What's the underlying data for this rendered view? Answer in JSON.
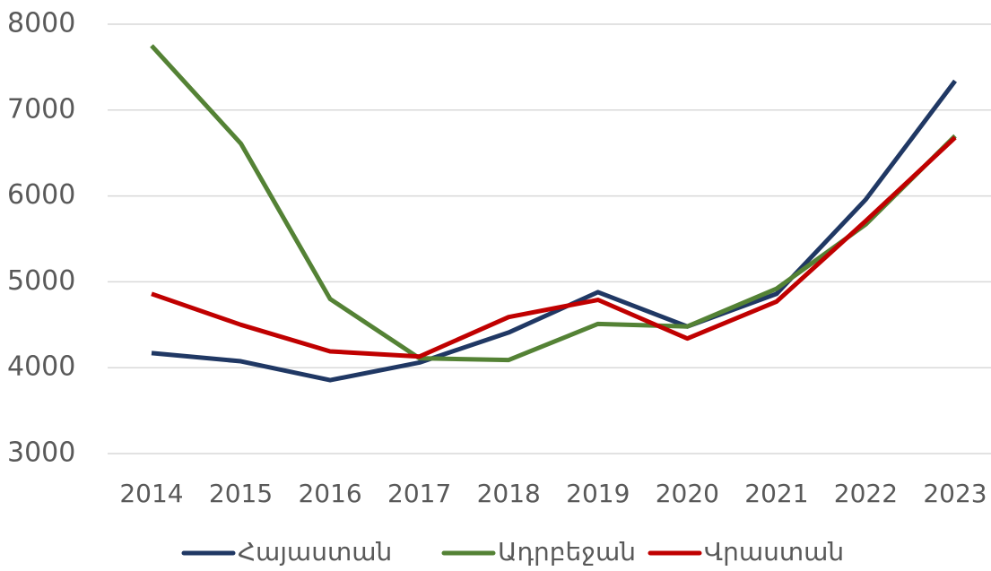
{
  "chart_data": {
    "type": "line",
    "categories": [
      "2014",
      "2015",
      "2016",
      "2017",
      "2018",
      "2019",
      "2020",
      "2021",
      "2022",
      "2023"
    ],
    "series": [
      {
        "name": "Հայաստան",
        "color": "#203864",
        "values": [
          4170,
          4075,
          3855,
          4060,
          4410,
          4880,
          4480,
          4860,
          5960,
          7340
        ]
      },
      {
        "name": "Ադրբեջան",
        "color": "#548235",
        "values": [
          7750,
          6610,
          4800,
          4110,
          4090,
          4510,
          4480,
          4920,
          5670,
          6700
        ]
      },
      {
        "name": "Վրաստան",
        "color": "#c00000",
        "values": [
          4860,
          4500,
          4190,
          4130,
          4590,
          4790,
          4340,
          4770,
          5710,
          6680
        ]
      }
    ],
    "ylim": [
      3000,
      8000
    ],
    "yticks": [
      3000,
      4000,
      5000,
      6000,
      7000,
      8000
    ],
    "grid": true,
    "legend": "bottom"
  }
}
